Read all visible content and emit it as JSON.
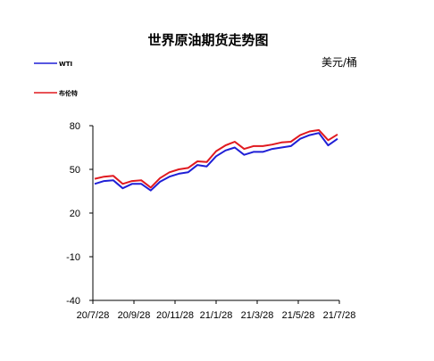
{
  "chart_data": {
    "type": "line",
    "title": "世界原油期货走势图",
    "unit": "美元/桶",
    "legend": [
      "WTI",
      "布伦特"
    ],
    "legend_position": "top-left",
    "ylim": [
      -40,
      80
    ],
    "yticks": [
      80,
      50,
      20,
      -10,
      -40
    ],
    "xticks": [
      "20/7/28",
      "20/9/28",
      "20/11/28",
      "21/1/28",
      "21/3/28",
      "21/5/28",
      "21/7/28"
    ],
    "x": [
      "20/7/28",
      "20/8/12",
      "20/8/28",
      "20/9/8",
      "20/9/28",
      "20/10/14",
      "20/10/30",
      "20/11/16",
      "20/11/28",
      "20/12/14",
      "20/12/28",
      "21/1/14",
      "21/1/28",
      "21/2/12",
      "21/2/26",
      "21/3/8",
      "21/3/18",
      "21/3/28",
      "21/4/14",
      "21/4/28",
      "21/5/14",
      "21/5/28",
      "21/6/14",
      "21/6/28",
      "21/7/6",
      "21/7/19",
      "21/7/28"
    ],
    "series": [
      {
        "name": "WTI",
        "color": "#1f1fd6",
        "values": [
          40,
          42,
          42.5,
          37,
          40,
          40,
          35.5,
          41.5,
          45,
          47,
          48,
          53,
          52,
          59,
          63,
          65,
          60,
          62,
          62,
          64,
          65,
          66,
          71,
          73.5,
          75,
          66.5,
          71
        ]
      },
      {
        "name": "布伦特",
        "color": "#e0191f",
        "values": [
          43.5,
          45,
          45.5,
          40,
          42,
          42.5,
          37.5,
          44,
          48,
          50,
          51,
          55.5,
          55,
          62.5,
          66.5,
          69,
          64,
          66,
          66,
          67,
          68.5,
          69,
          73.5,
          76,
          77,
          70,
          74
        ]
      }
    ]
  }
}
